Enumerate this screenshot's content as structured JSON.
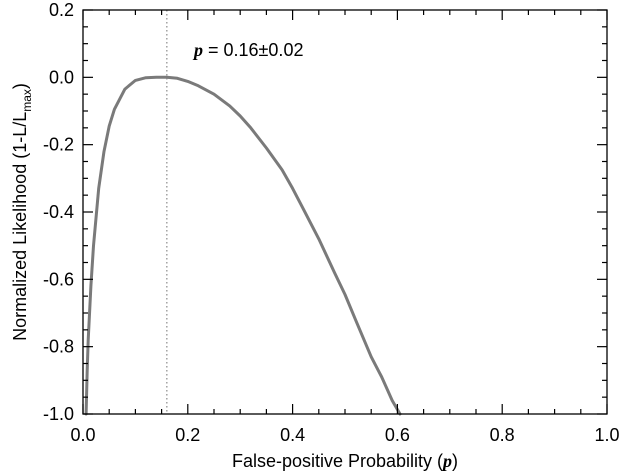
{
  "chart_data": {
    "type": "line",
    "title": "",
    "xlabel": "False-positive Probability",
    "xlabel_var": "p",
    "ylabel": "Normalized Likelihood (1-L/L",
    "ylabel_sub": "max",
    "ylabel_close": ")",
    "xlim": [
      0.0,
      1.0
    ],
    "ylim": [
      -1.0,
      0.2
    ],
    "x_ticks": [
      0.0,
      0.2,
      0.4,
      0.6,
      0.8,
      1.0
    ],
    "x_tick_labels": [
      "0.0",
      "0.2",
      "0.4",
      "0.6",
      "0.8",
      "1.0"
    ],
    "y_ticks": [
      -1.0,
      -0.8,
      -0.6,
      -0.4,
      -0.2,
      0.0,
      0.2
    ],
    "y_tick_labels": [
      "-1.0",
      "-0.8",
      "-0.6",
      "-0.4",
      "-0.2",
      "0.0",
      "0.2"
    ],
    "grid": false,
    "series": [
      {
        "color": "#7a7a7a",
        "x": [
          0.006,
          0.008,
          0.01,
          0.015,
          0.02,
          0.03,
          0.04,
          0.05,
          0.06,
          0.08,
          0.1,
          0.12,
          0.14,
          0.16,
          0.18,
          0.2,
          0.22,
          0.25,
          0.28,
          0.3,
          0.32,
          0.35,
          0.38,
          0.4,
          0.42,
          0.45,
          0.48,
          0.5,
          0.52,
          0.55,
          0.57,
          0.59,
          0.605
        ],
        "y": [
          -1.0,
          -0.87,
          -0.78,
          -0.62,
          -0.5,
          -0.33,
          -0.22,
          -0.145,
          -0.095,
          -0.035,
          -0.009,
          -0.001,
          0.0,
          0.0,
          -0.003,
          -0.012,
          -0.025,
          -0.05,
          -0.085,
          -0.115,
          -0.15,
          -0.21,
          -0.275,
          -0.33,
          -0.39,
          -0.48,
          -0.58,
          -0.645,
          -0.72,
          -0.83,
          -0.89,
          -0.96,
          -1.0
        ]
      }
    ],
    "marker_line": {
      "x": 0.16,
      "style": "dotted",
      "color": "#8a8a8a"
    },
    "annotation": {
      "var": "p",
      "text": " = 0.16±0.02"
    }
  }
}
